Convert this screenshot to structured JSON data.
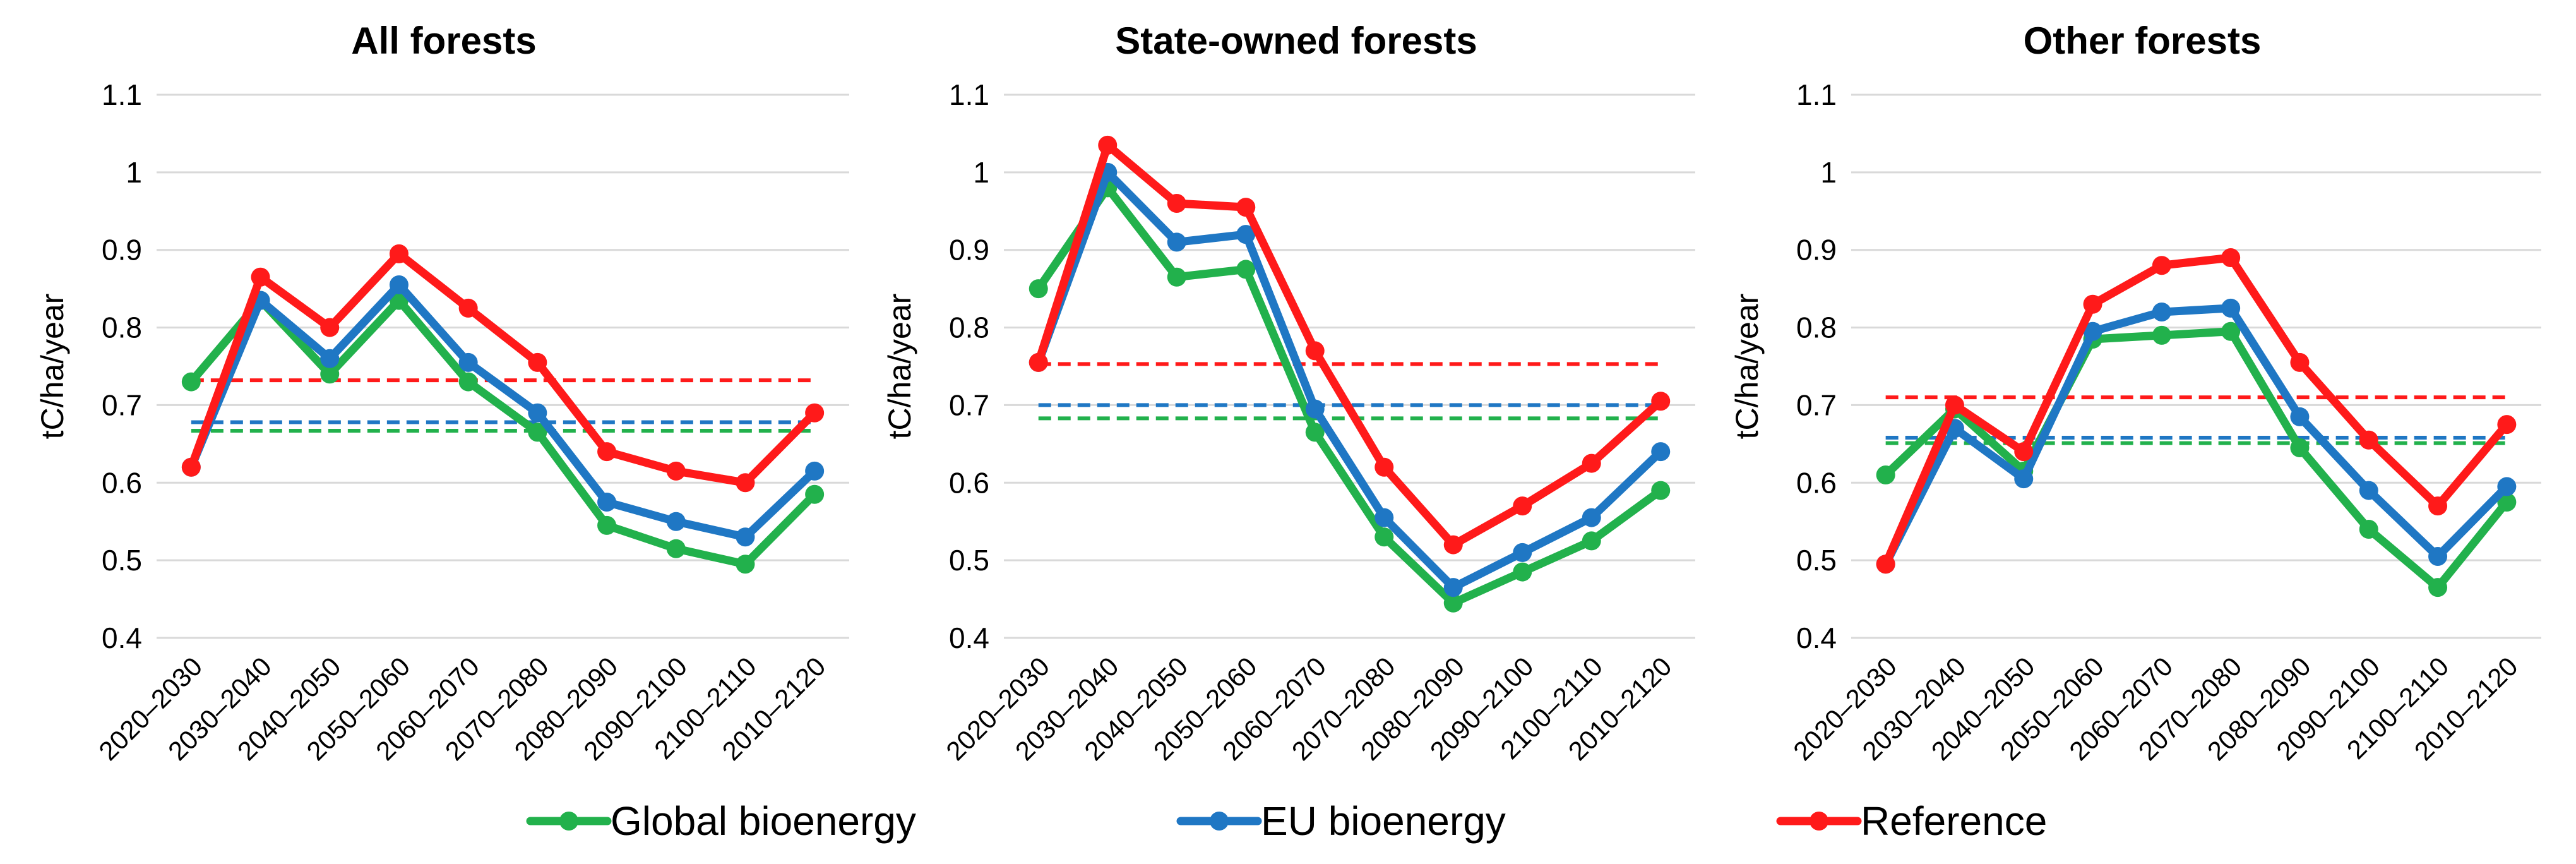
{
  "chart_data": [
    {
      "type": "line",
      "title": "All forests",
      "xlabel": "",
      "ylabel": "tC/ha/year",
      "ylim": [
        0.4,
        1.1
      ],
      "yticks": [
        "0.4",
        "0.5",
        "0.6",
        "0.7",
        "0.8",
        "0.9",
        "1",
        "1.1"
      ],
      "categories": [
        "2020–2030",
        "2030–2040",
        "2040–2050",
        "2050–2060",
        "2060–2070",
        "2070–2080",
        "2080–2090",
        "2090–2100",
        "2100–2110",
        "2010–2120"
      ],
      "series": [
        {
          "name": "Global bioenergy",
          "color": "#22b14c",
          "values": [
            0.73,
            0.835,
            0.74,
            0.835,
            0.73,
            0.665,
            0.545,
            0.515,
            0.495,
            0.585
          ]
        },
        {
          "name": "EU bioenergy",
          "color": "#1f77c4",
          "values": [
            0.62,
            0.835,
            0.76,
            0.855,
            0.755,
            0.69,
            0.575,
            0.55,
            0.53,
            0.615
          ]
        },
        {
          "name": "Reference",
          "color": "#ff1a1a",
          "values": [
            0.62,
            0.865,
            0.8,
            0.895,
            0.825,
            0.755,
            0.64,
            0.615,
            0.6,
            0.69
          ]
        }
      ],
      "averages": [
        {
          "series": "Global bioenergy",
          "value": 0.667
        },
        {
          "series": "EU bioenergy",
          "value": 0.678
        },
        {
          "series": "Reference",
          "value": 0.732
        }
      ]
    },
    {
      "type": "line",
      "title": "State-owned forests",
      "xlabel": "",
      "ylabel": "tC/ha/year",
      "ylim": [
        0.4,
        1.1
      ],
      "yticks": [
        "0.4",
        "0.5",
        "0.6",
        "0.7",
        "0.8",
        "0.9",
        "1",
        "1.1"
      ],
      "categories": [
        "2020–2030",
        "2030–2040",
        "2040–2050",
        "2050–2060",
        "2060–2070",
        "2070–2080",
        "2080–2090",
        "2090–2100",
        "2100–2110",
        "2010–2120"
      ],
      "series": [
        {
          "name": "Global bioenergy",
          "color": "#22b14c",
          "values": [
            0.85,
            0.98,
            0.865,
            0.875,
            0.665,
            0.53,
            0.445,
            0.485,
            0.525,
            0.59
          ]
        },
        {
          "name": "EU bioenergy",
          "color": "#1f77c4",
          "values": [
            0.755,
            1.0,
            0.91,
            0.92,
            0.695,
            0.555,
            0.465,
            0.51,
            0.555,
            0.64
          ]
        },
        {
          "name": "Reference",
          "color": "#ff1a1a",
          "values": [
            0.755,
            1.035,
            0.96,
            0.955,
            0.77,
            0.62,
            0.52,
            0.57,
            0.625,
            0.705
          ]
        }
      ],
      "averages": [
        {
          "series": "Global bioenergy",
          "value": 0.683
        },
        {
          "series": "EU bioenergy",
          "value": 0.7
        },
        {
          "series": "Reference",
          "value": 0.753
        }
      ]
    },
    {
      "type": "line",
      "title": "Other forests",
      "xlabel": "",
      "ylabel": "tC/ha/year",
      "ylim": [
        0.4,
        1.1
      ],
      "yticks": [
        "0.4",
        "0.5",
        "0.6",
        "0.7",
        "0.8",
        "0.9",
        "1",
        "1.1"
      ],
      "categories": [
        "2020–2030",
        "2030–2040",
        "2040–2050",
        "2050–2060",
        "2060–2070",
        "2070–2080",
        "2080–2090",
        "2090–2100",
        "2100–2110",
        "2010–2120"
      ],
      "series": [
        {
          "name": "Global bioenergy",
          "color": "#22b14c",
          "values": [
            0.61,
            0.695,
            0.615,
            0.785,
            0.79,
            0.795,
            0.645,
            0.54,
            0.465,
            0.575
          ]
        },
        {
          "name": "EU bioenergy",
          "color": "#1f77c4",
          "values": [
            0.495,
            0.67,
            0.605,
            0.795,
            0.82,
            0.825,
            0.685,
            0.59,
            0.505,
            0.595
          ]
        },
        {
          "name": "Reference",
          "color": "#ff1a1a",
          "values": [
            0.495,
            0.7,
            0.64,
            0.83,
            0.88,
            0.89,
            0.755,
            0.655,
            0.57,
            0.675
          ]
        }
      ],
      "averages": [
        {
          "series": "Global bioenergy",
          "value": 0.651
        },
        {
          "series": "EU bioenergy",
          "value": 0.658
        },
        {
          "series": "Reference",
          "value": 0.71
        }
      ]
    }
  ],
  "legend": {
    "position": "bottom",
    "items": [
      {
        "label": "Global bioenergy",
        "color": "#22b14c"
      },
      {
        "label": "EU bioenergy",
        "color": "#1f77c4"
      },
      {
        "label": "Reference",
        "color": "#ff1a1a"
      }
    ]
  }
}
